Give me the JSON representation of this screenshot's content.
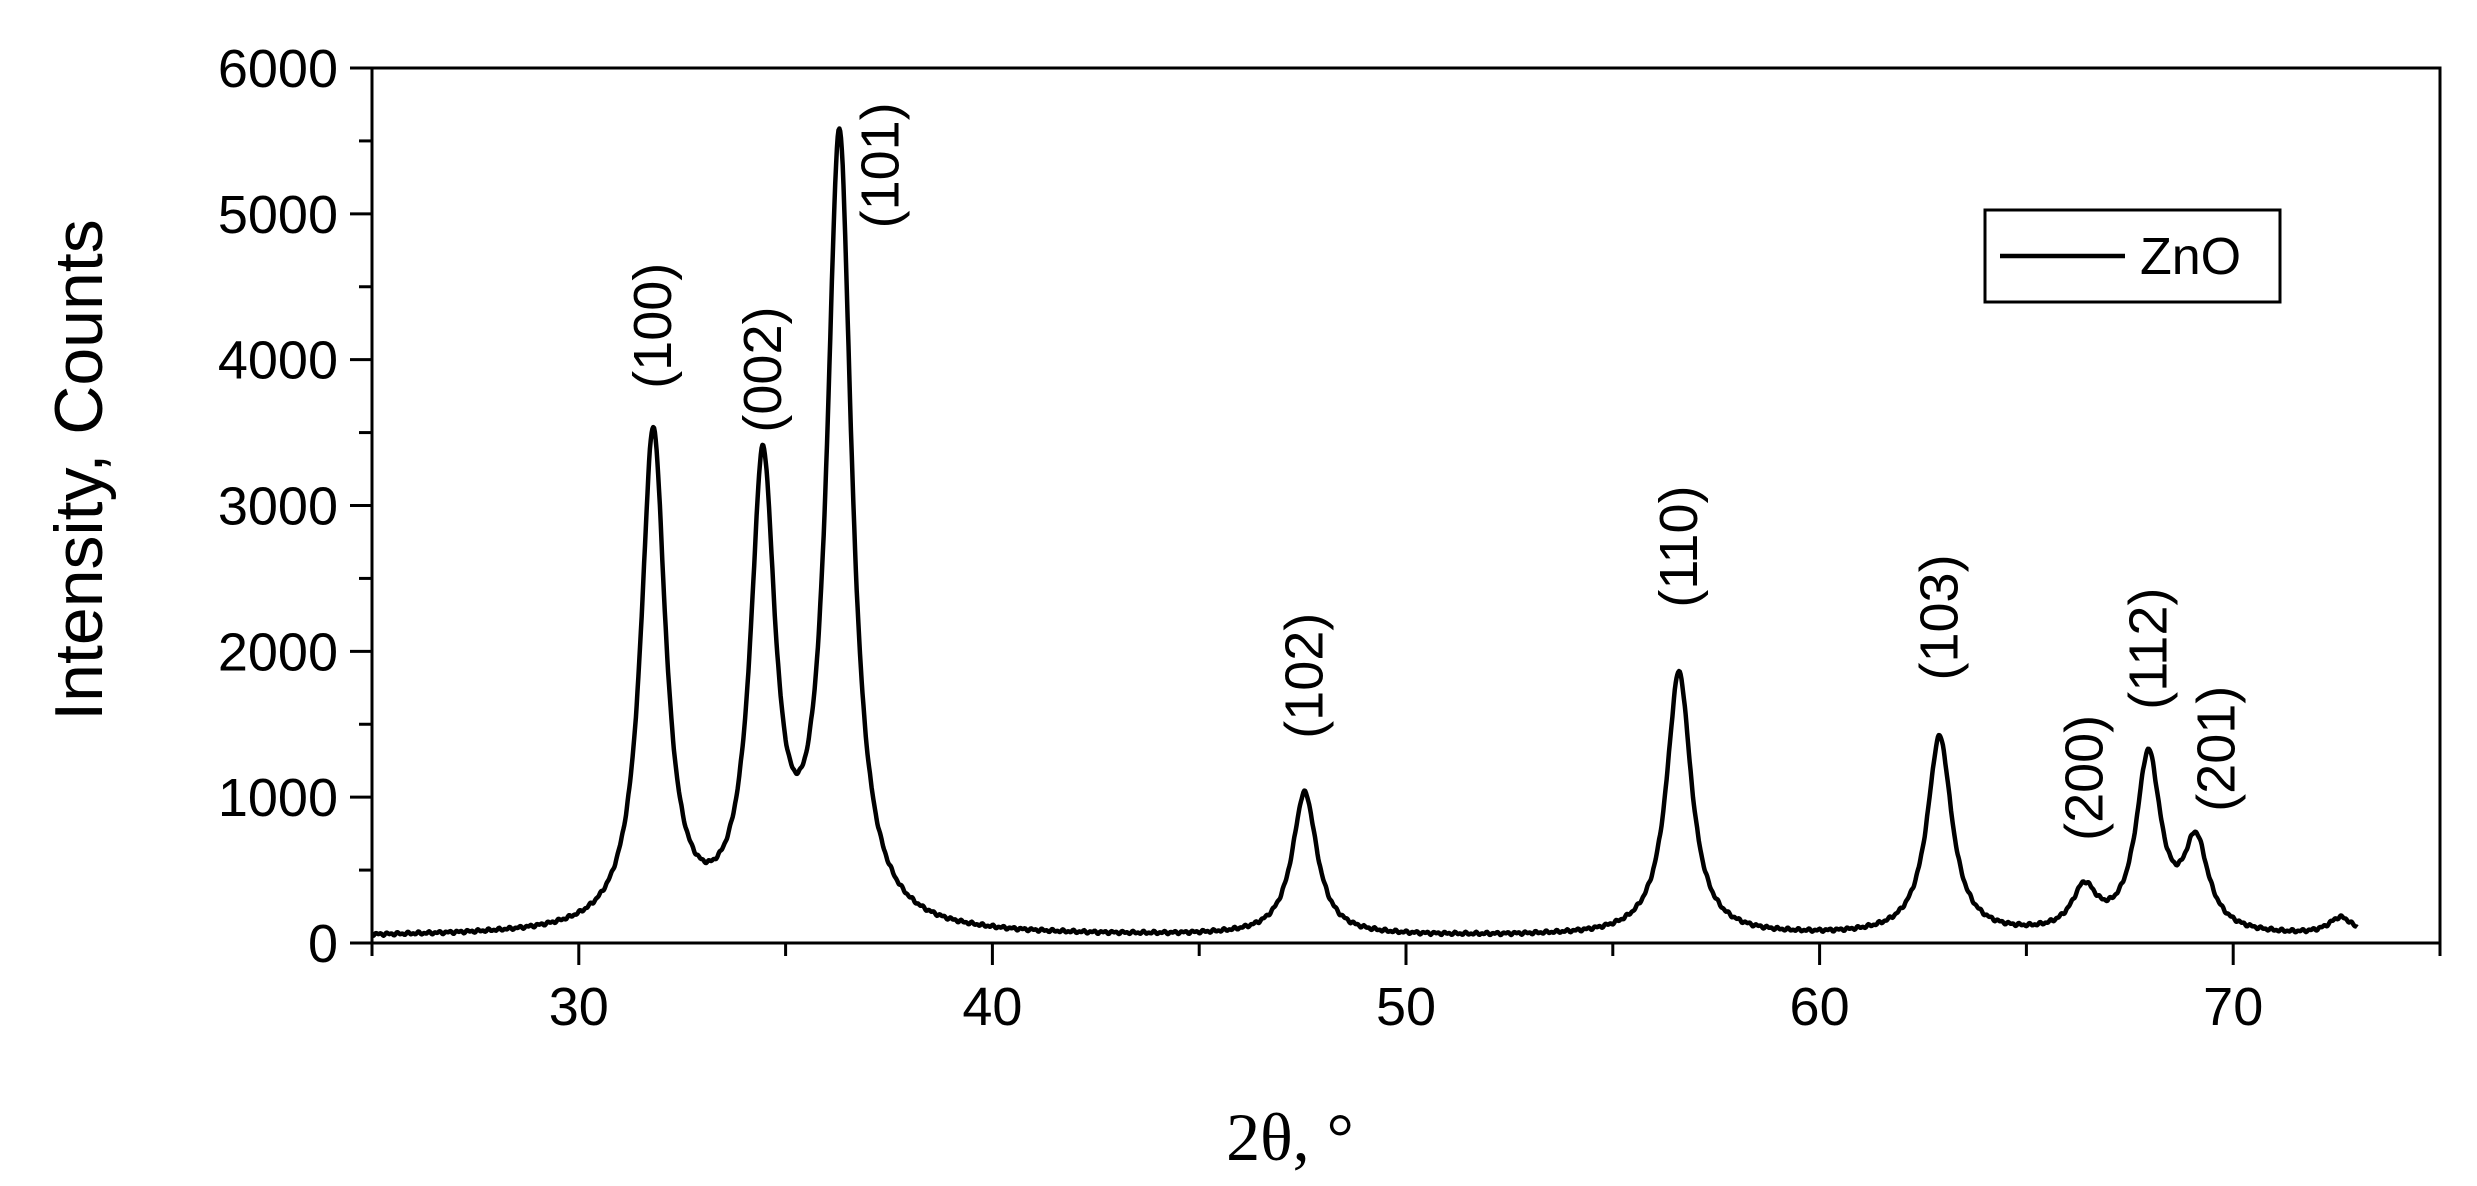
{
  "chart_data": {
    "type": "line",
    "title": "",
    "xlabel": "2θ, °",
    "ylabel": "Intensity, Counts",
    "xlim": [
      25,
      75
    ],
    "ylim": [
      0,
      6000
    ],
    "x_major_ticks": [
      30,
      40,
      50,
      60,
      70
    ],
    "y_major_ticks": [
      0,
      1000,
      2000,
      3000,
      4000,
      5000,
      6000
    ],
    "x_minor_step": 5,
    "y_minor_step": 500,
    "grid": false,
    "legend": {
      "placement": "top-right",
      "entries": [
        "ZnO"
      ]
    },
    "series": [
      {
        "name": "ZnO",
        "color": "#000000",
        "baseline": 40,
        "x_start": 25,
        "x_end": 73,
        "peaks": [
          {
            "x": 31.8,
            "y": 3450
          },
          {
            "x": 34.45,
            "y": 3150
          },
          {
            "x": 36.3,
            "y": 5450
          },
          {
            "x": 47.55,
            "y": 1020
          },
          {
            "x": 56.6,
            "y": 1850
          },
          {
            "x": 62.9,
            "y": 1400
          },
          {
            "x": 66.4,
            "y": 330
          },
          {
            "x": 67.95,
            "y": 1250
          },
          {
            "x": 69.1,
            "y": 640
          },
          {
            "x": 72.6,
            "y": 160
          }
        ]
      }
    ],
    "annotations": [
      {
        "text": "(100)",
        "x": 31.8,
        "y": 3800
      },
      {
        "text": "(002)",
        "x": 34.45,
        "y": 3500
      },
      {
        "text": "(101)",
        "x": 37.3,
        "y": 4900
      },
      {
        "text": "(102)",
        "x": 47.55,
        "y": 1400
      },
      {
        "text": "(110)",
        "x": 56.6,
        "y": 2300
      },
      {
        "text": "(103)",
        "x": 62.9,
        "y": 1800
      },
      {
        "text": "(200)",
        "x": 66.4,
        "y": 700
      },
      {
        "text": "(112)",
        "x": 67.95,
        "y": 1600
      },
      {
        "text": "(201)",
        "x": 69.6,
        "y": 900
      }
    ]
  }
}
